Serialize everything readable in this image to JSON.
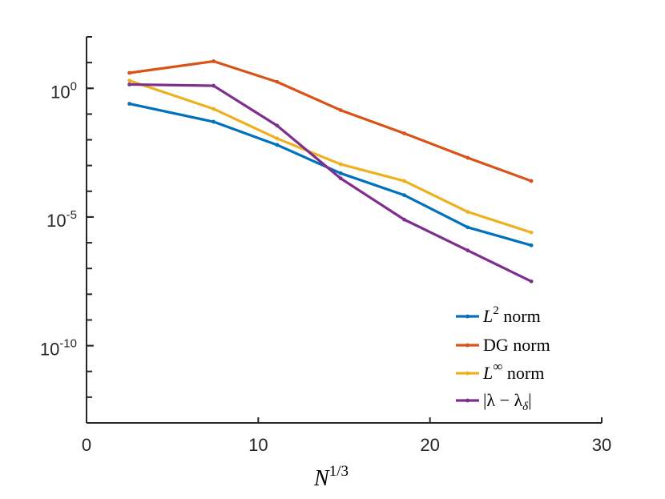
{
  "chart_data": {
    "type": "line",
    "title": "",
    "xlabel": "N^1/3",
    "ylabel": "",
    "xscale": "linear",
    "yscale": "log",
    "xlim": [
      0,
      30
    ],
    "ylim_log10": [
      -13,
      2
    ],
    "x_ticks": [
      "0",
      "10",
      "20",
      "30"
    ],
    "y_ticks": [
      {
        "base": "10",
        "exp": "0"
      },
      {
        "base": "10",
        "exp": "-5"
      },
      {
        "base": "10",
        "exp": "-10"
      }
    ],
    "x": [
      2.5,
      7.4,
      11.1,
      14.8,
      18.5,
      22.2,
      25.9
    ],
    "series": [
      {
        "name": "L² norm",
        "color": "#0072BD",
        "log10_values": [
          -0.6,
          -1.3,
          -2.2,
          -3.3,
          -4.15,
          -5.4,
          -6.1
        ]
      },
      {
        "name": "DG norm",
        "color": "#D95319",
        "log10_values": [
          0.6,
          1.05,
          0.25,
          -0.85,
          -1.75,
          -2.7,
          -3.6
        ]
      },
      {
        "name": "L∞ norm",
        "color": "#EDB120",
        "log10_values": [
          0.3,
          -0.8,
          -1.95,
          -2.95,
          -3.6,
          -4.8,
          -5.6
        ]
      },
      {
        "name": "|λ − λδ|",
        "color": "#7E2F8E",
        "log10_values": [
          0.15,
          0.1,
          -1.45,
          -3.5,
          -5.1,
          -6.3,
          -7.5
        ]
      }
    ],
    "legend": {
      "placement": "bottom-right",
      "entries": [
        {
          "main": "L",
          "sup": "2",
          "rest": " norm"
        },
        {
          "main": "DG norm",
          "sup": "",
          "rest": ""
        },
        {
          "main": "L",
          "sup": "∞",
          "rest": " norm"
        },
        {
          "main": "|λ − λ",
          "sub": "δ",
          "rest": "|"
        }
      ]
    },
    "xlabel_parts": {
      "main": "N",
      "sup": "1/3"
    }
  }
}
